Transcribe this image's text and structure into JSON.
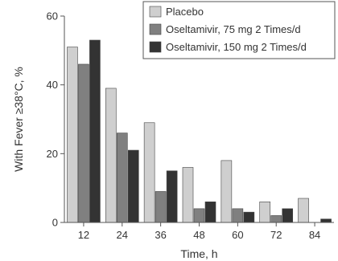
{
  "chart_data": {
    "type": "bar",
    "xlabel": "Time, h",
    "ylabel": "With Fever ≥38°C, %",
    "categories": [
      "12",
      "24",
      "36",
      "48",
      "60",
      "72",
      "84"
    ],
    "ylim": [
      0,
      60
    ],
    "yticks": [
      "0",
      "20",
      "40",
      "60"
    ],
    "grid": false,
    "legend_position": "top-right",
    "series": [
      {
        "name": "Placebo",
        "color": "#cfcfcf",
        "values": [
          51,
          39,
          29,
          16,
          18,
          6,
          7
        ]
      },
      {
        "name": "Oseltamivir, 75 mg 2 Times/d",
        "color": "#808080",
        "values": [
          46,
          26,
          9,
          4,
          4,
          2,
          0
        ]
      },
      {
        "name": "Oseltamivir, 150 mg 2 Times/d",
        "color": "#333333",
        "values": [
          53,
          21,
          15,
          6,
          3,
          4,
          1
        ]
      }
    ]
  }
}
